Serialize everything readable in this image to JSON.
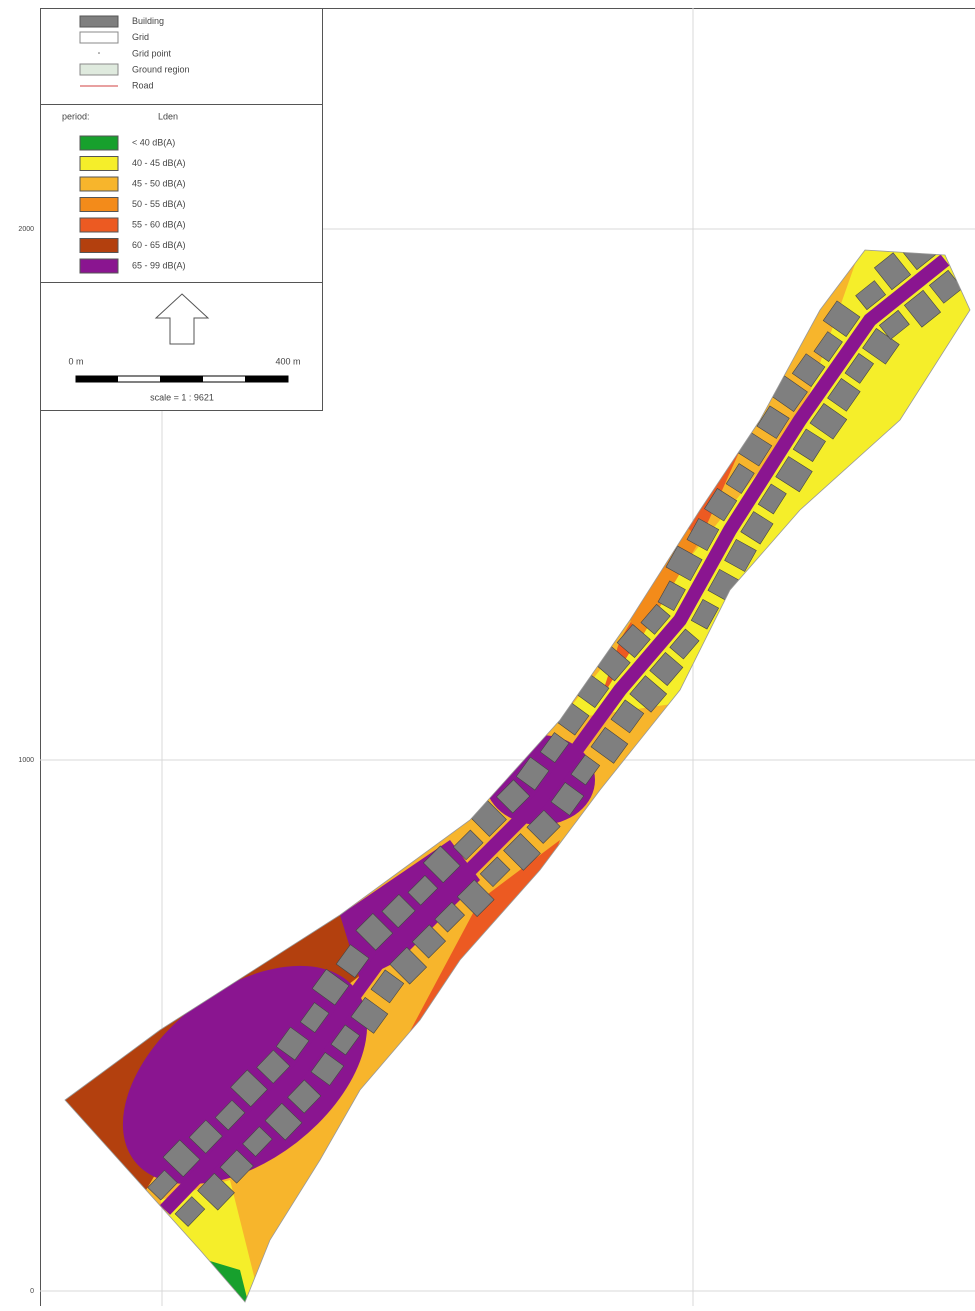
{
  "legend": {
    "items": [
      "Building",
      "Grid",
      "Grid point",
      "Ground region",
      "Road"
    ],
    "period_label": "period:",
    "period_value": "Lden",
    "classes": [
      {
        "label": "< 40 dB(A)",
        "color": "#17a02d"
      },
      {
        "label": "40 - 45 dB(A)",
        "color": "#f5ee2a"
      },
      {
        "label": "45 - 50 dB(A)",
        "color": "#f7b52c"
      },
      {
        "label": "50 - 55 dB(A)",
        "color": "#f38b1a"
      },
      {
        "label": "55 - 60 dB(A)",
        "color": "#ec5a22"
      },
      {
        "label": "60 - 65 dB(A)",
        "color": "#b3400e"
      },
      {
        "label": "65 - 99 dB(A)",
        "color": "#8a1590"
      }
    ],
    "scale": {
      "start": "0 m",
      "end": "400 m",
      "ratio": "scale = 1 : 9621"
    }
  },
  "axis": {
    "y_labels": [
      "2000",
      "1000",
      "0"
    ]
  }
}
